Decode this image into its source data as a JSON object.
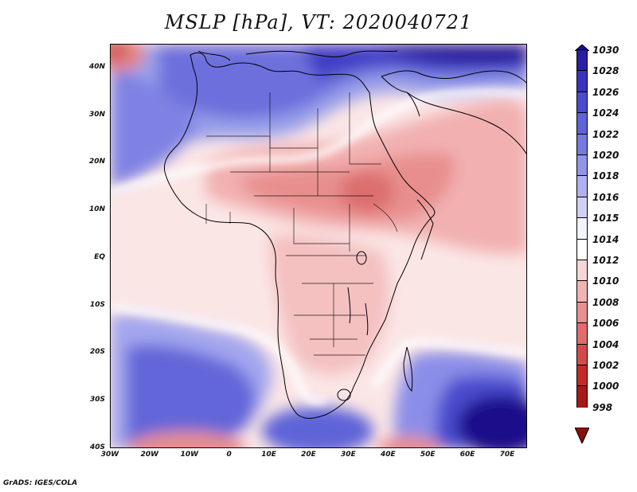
{
  "title": "MSLP [hPa], VT: 2020040721",
  "credit": "GrADS: IGES/COLA",
  "map": {
    "variable": "MSLP",
    "units": "hPa",
    "valid_time": "2020040721",
    "lon_range": [
      -30,
      75
    ],
    "lat_range": [
      -40,
      45
    ],
    "lat_labels": [
      "40N",
      "30N",
      "20N",
      "10N",
      "EQ",
      "10S",
      "20S",
      "30S",
      "40S"
    ],
    "lon_labels": [
      "30W",
      "20W",
      "10W",
      "0",
      "10E",
      "20E",
      "30E",
      "40E",
      "50E",
      "60E",
      "70E"
    ]
  },
  "colorbar": {
    "labels": [
      "1030",
      "1028",
      "1026",
      "1024",
      "1022",
      "1020",
      "1018",
      "1016",
      "1015",
      "1014",
      "1012",
      "1010",
      "1008",
      "1006",
      "1004",
      "1002",
      "1000",
      "998"
    ],
    "colors": [
      "#1e0c8a",
      "#2a1da6",
      "#3a33bf",
      "#4a4ccd",
      "#5f63d8",
      "#7779e1",
      "#9194e9",
      "#afb1f0",
      "#d0d1f7",
      "#f4f4ff",
      "#ffffff",
      "#f9d6d6",
      "#f2b3b3",
      "#ea8f8f",
      "#e06c6c",
      "#d44a4a",
      "#c42a2a",
      "#a81818",
      "#8a0e0e"
    ]
  }
}
